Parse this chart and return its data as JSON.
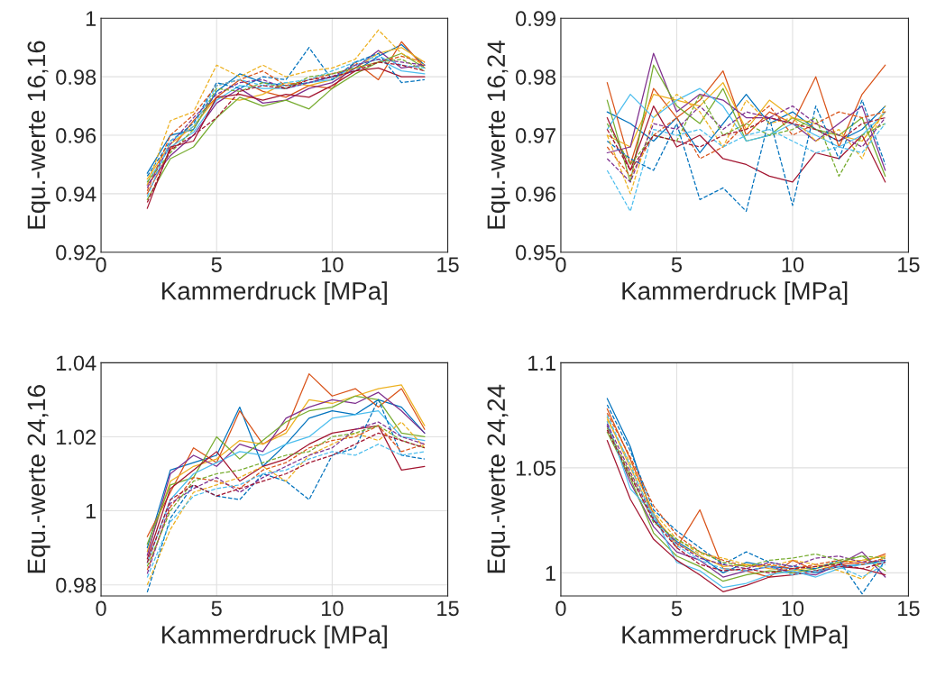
{
  "chart_data": [
    {
      "type": "line",
      "xlabel": "Kammerdruck [MPa]",
      "ylabel": "Equ.-werte 16,16",
      "x": [
        2,
        3,
        4,
        5,
        6,
        7,
        8,
        9,
        10,
        11,
        12,
        13,
        14
      ],
      "xlim": [
        0,
        15
      ],
      "xticks": [
        0,
        5,
        10,
        15
      ],
      "ylim": [
        0.92,
        1
      ],
      "yticks": [
        0.92,
        0.94,
        0.96,
        0.98,
        1
      ],
      "grid": true,
      "series": [
        {
          "color": "#0072bd",
          "line_style": "solid",
          "values": [
            0.947,
            0.96,
            0.962,
            0.975,
            0.981,
            0.978,
            0.977,
            0.978,
            0.98,
            0.982,
            0.987,
            0.991,
            0.984
          ]
        },
        {
          "color": "#d95319",
          "line_style": "solid",
          "values": [
            0.94,
            0.955,
            0.965,
            0.973,
            0.979,
            0.975,
            0.973,
            0.977,
            0.976,
            0.985,
            0.979,
            0.992,
            0.983
          ]
        },
        {
          "color": "#edb120",
          "line_style": "solid",
          "values": [
            0.945,
            0.957,
            0.963,
            0.973,
            0.972,
            0.974,
            0.978,
            0.977,
            0.979,
            0.983,
            0.988,
            0.99,
            0.985
          ]
        },
        {
          "color": "#7e2f8e",
          "line_style": "solid",
          "values": [
            0.943,
            0.953,
            0.96,
            0.971,
            0.976,
            0.971,
            0.972,
            0.976,
            0.978,
            0.983,
            0.989,
            0.983,
            0.984
          ]
        },
        {
          "color": "#77ac30",
          "line_style": "solid",
          "values": [
            0.938,
            0.952,
            0.956,
            0.966,
            0.973,
            0.97,
            0.972,
            0.969,
            0.976,
            0.981,
            0.985,
            0.988,
            0.983
          ]
        },
        {
          "color": "#4dbeee",
          "line_style": "solid",
          "values": [
            0.944,
            0.956,
            0.961,
            0.972,
            0.977,
            0.976,
            0.976,
            0.978,
            0.979,
            0.984,
            0.986,
            0.982,
            0.981
          ]
        },
        {
          "color": "#a2142f",
          "line_style": "solid",
          "values": [
            0.935,
            0.956,
            0.958,
            0.973,
            0.974,
            0.972,
            0.974,
            0.973,
            0.977,
            0.982,
            0.983,
            0.98,
            0.98
          ]
        },
        {
          "color": "#0072bd",
          "line_style": "dashed",
          "values": [
            0.946,
            0.958,
            0.964,
            0.978,
            0.976,
            0.98,
            0.979,
            0.99,
            0.979,
            0.985,
            0.988,
            0.978,
            0.979
          ]
        },
        {
          "color": "#d95319",
          "line_style": "dashed",
          "values": [
            0.941,
            0.96,
            0.967,
            0.977,
            0.979,
            0.982,
            0.977,
            0.979,
            0.981,
            0.983,
            0.985,
            0.987,
            0.985
          ]
        },
        {
          "color": "#edb120",
          "line_style": "dashed",
          "values": [
            0.943,
            0.965,
            0.968,
            0.984,
            0.98,
            0.984,
            0.98,
            0.982,
            0.983,
            0.986,
            0.996,
            0.988,
            0.984
          ]
        },
        {
          "color": "#7e2f8e",
          "line_style": "dashed",
          "values": [
            0.942,
            0.957,
            0.966,
            0.974,
            0.978,
            0.979,
            0.976,
            0.978,
            0.98,
            0.984,
            0.986,
            0.985,
            0.984
          ]
        },
        {
          "color": "#77ac30",
          "line_style": "dashed",
          "values": [
            0.944,
            0.954,
            0.962,
            0.976,
            0.975,
            0.978,
            0.976,
            0.98,
            0.981,
            0.983,
            0.985,
            0.986,
            0.982
          ]
        },
        {
          "color": "#4dbeee",
          "line_style": "dashed",
          "values": [
            0.939,
            0.958,
            0.963,
            0.977,
            0.979,
            0.977,
            0.978,
            0.979,
            0.982,
            0.985,
            0.987,
            0.984,
            0.983
          ]
        },
        {
          "color": "#a2142f",
          "line_style": "dashed",
          "values": [
            0.937,
            0.955,
            0.96,
            0.966,
            0.975,
            0.977,
            0.976,
            0.979,
            0.98,
            0.982,
            0.985,
            0.984,
            0.982
          ]
        }
      ]
    },
    {
      "type": "line",
      "xlabel": "Kammerdruck [MPa]",
      "ylabel": "Equ.-werte 16,24",
      "x": [
        2,
        3,
        4,
        5,
        6,
        7,
        8,
        9,
        10,
        11,
        12,
        13,
        14
      ],
      "xlim": [
        0,
        15
      ],
      "xticks": [
        0,
        5,
        10,
        15
      ],
      "ylim": [
        0.95,
        0.99
      ],
      "yticks": [
        0.95,
        0.96,
        0.97,
        0.98,
        0.99
      ],
      "grid": true,
      "series": [
        {
          "color": "#0072bd",
          "line_style": "solid",
          "values": [
            0.974,
            0.972,
            0.969,
            0.973,
            0.967,
            0.972,
            0.977,
            0.972,
            0.974,
            0.971,
            0.969,
            0.971,
            0.975
          ]
        },
        {
          "color": "#d95319",
          "line_style": "solid",
          "values": [
            0.979,
            0.965,
            0.978,
            0.973,
            0.976,
            0.981,
            0.97,
            0.974,
            0.972,
            0.98,
            0.968,
            0.977,
            0.982
          ]
        },
        {
          "color": "#edb120",
          "line_style": "solid",
          "values": [
            0.97,
            0.968,
            0.977,
            0.976,
            0.975,
            0.979,
            0.971,
            0.976,
            0.973,
            0.972,
            0.97,
            0.969,
            0.974
          ]
        },
        {
          "color": "#7e2f8e",
          "line_style": "solid",
          "values": [
            0.967,
            0.968,
            0.984,
            0.974,
            0.977,
            0.976,
            0.973,
            0.973,
            0.972,
            0.969,
            0.972,
            0.975,
            0.964
          ]
        },
        {
          "color": "#77ac30",
          "line_style": "solid",
          "values": [
            0.976,
            0.962,
            0.982,
            0.975,
            0.972,
            0.978,
            0.969,
            0.97,
            0.973,
            0.971,
            0.97,
            0.973,
            0.963
          ]
        },
        {
          "color": "#4dbeee",
          "line_style": "solid",
          "values": [
            0.971,
            0.977,
            0.973,
            0.976,
            0.978,
            0.975,
            0.969,
            0.97,
            0.972,
            0.97,
            0.968,
            0.97,
            0.974
          ]
        },
        {
          "color": "#a2142f",
          "line_style": "solid",
          "values": [
            0.973,
            0.964,
            0.975,
            0.968,
            0.97,
            0.966,
            0.965,
            0.963,
            0.962,
            0.967,
            0.966,
            0.97,
            0.962
          ]
        },
        {
          "color": "#0072bd",
          "line_style": "dashed",
          "values": [
            0.969,
            0.966,
            0.964,
            0.972,
            0.959,
            0.961,
            0.957,
            0.973,
            0.958,
            0.975,
            0.966,
            0.976,
            0.965
          ]
        },
        {
          "color": "#d95319",
          "line_style": "dashed",
          "values": [
            0.968,
            0.963,
            0.97,
            0.973,
            0.966,
            0.968,
            0.972,
            0.975,
            0.97,
            0.972,
            0.974,
            0.973,
            0.974
          ]
        },
        {
          "color": "#edb120",
          "line_style": "dashed",
          "values": [
            0.97,
            0.96,
            0.973,
            0.977,
            0.974,
            0.968,
            0.976,
            0.972,
            0.973,
            0.969,
            0.971,
            0.966,
            0.975
          ]
        },
        {
          "color": "#7e2f8e",
          "line_style": "dashed",
          "values": [
            0.966,
            0.962,
            0.972,
            0.971,
            0.975,
            0.971,
            0.974,
            0.973,
            0.975,
            0.972,
            0.97,
            0.968,
            0.973
          ]
        },
        {
          "color": "#77ac30",
          "line_style": "dashed",
          "values": [
            0.972,
            0.965,
            0.97,
            0.969,
            0.977,
            0.97,
            0.972,
            0.97,
            0.971,
            0.973,
            0.963,
            0.97,
            0.972
          ]
        },
        {
          "color": "#4dbeee",
          "line_style": "dashed",
          "values": [
            0.964,
            0.957,
            0.971,
            0.97,
            0.971,
            0.968,
            0.97,
            0.971,
            0.969,
            0.967,
            0.968,
            0.967,
            0.972
          ]
        },
        {
          "color": "#a2142f",
          "line_style": "dashed",
          "values": [
            0.971,
            0.964,
            0.97,
            0.969,
            0.968,
            0.97,
            0.971,
            0.973,
            0.972,
            0.971,
            0.969,
            0.972,
            0.973
          ]
        }
      ]
    },
    {
      "type": "line",
      "xlabel": "Kammerdruck [MPa]",
      "ylabel": "Equ.-werte 24,16",
      "x": [
        2,
        3,
        4,
        5,
        6,
        7,
        8,
        9,
        10,
        11,
        12,
        13,
        14
      ],
      "xlim": [
        0,
        15
      ],
      "xticks": [
        0,
        5,
        10,
        15
      ],
      "ylim": [
        0.977,
        1.04
      ],
      "yticks": [
        0.98,
        1,
        1.02,
        1.04
      ],
      "grid": true,
      "series": [
        {
          "color": "#0072bd",
          "line_style": "solid",
          "values": [
            0.99,
            1.011,
            1.013,
            1.015,
            1.028,
            1.012,
            1.018,
            1.025,
            1.027,
            1.026,
            1.03,
            1.028,
            1.021
          ]
        },
        {
          "color": "#d95319",
          "line_style": "solid",
          "values": [
            0.993,
            1.005,
            1.017,
            1.013,
            1.027,
            1.018,
            1.022,
            1.037,
            1.031,
            1.033,
            1.028,
            1.033,
            1.022
          ]
        },
        {
          "color": "#edb120",
          "line_style": "solid",
          "values": [
            0.989,
            1.008,
            1.012,
            1.014,
            1.019,
            1.018,
            1.021,
            1.03,
            1.029,
            1.031,
            1.033,
            1.034,
            1.023
          ]
        },
        {
          "color": "#7e2f8e",
          "line_style": "solid",
          "values": [
            0.988,
            1.01,
            1.015,
            1.012,
            1.018,
            1.016,
            1.025,
            1.028,
            1.03,
            1.029,
            1.032,
            1.027,
            1.021
          ]
        },
        {
          "color": "#77ac30",
          "line_style": "solid",
          "values": [
            0.991,
            1.007,
            1.009,
            1.02,
            1.014,
            1.019,
            1.024,
            1.027,
            1.028,
            1.031,
            1.03,
            1.021,
            1.02
          ]
        },
        {
          "color": "#4dbeee",
          "line_style": "solid",
          "values": [
            0.986,
            1.003,
            1.01,
            1.013,
            1.016,
            1.015,
            1.018,
            1.02,
            1.025,
            1.026,
            1.027,
            1.02,
            1.019
          ]
        },
        {
          "color": "#a2142f",
          "line_style": "solid",
          "values": [
            0.987,
            1.006,
            1.011,
            1.016,
            1.008,
            1.012,
            1.014,
            1.018,
            1.021,
            1.022,
            1.023,
            1.011,
            1.012
          ]
        },
        {
          "color": "#0072bd",
          "line_style": "dashed",
          "values": [
            0.978,
            0.998,
            1.007,
            1.004,
            1.003,
            1.01,
            1.008,
            1.003,
            1.015,
            1.017,
            1.03,
            1.015,
            1.014
          ]
        },
        {
          "color": "#d95319",
          "line_style": "dashed",
          "values": [
            0.984,
            1.001,
            1.009,
            1.008,
            1.006,
            1.011,
            1.013,
            1.017,
            1.019,
            1.02,
            1.023,
            1.016,
            1.018
          ]
        },
        {
          "color": "#edb120",
          "line_style": "dashed",
          "values": [
            0.98,
            0.995,
            1.005,
            1.007,
            1.009,
            1.012,
            1.008,
            1.015,
            1.018,
            1.021,
            1.019,
            1.024,
            1.017
          ]
        },
        {
          "color": "#7e2f8e",
          "line_style": "dashed",
          "values": [
            0.983,
            1.002,
            1.006,
            1.009,
            1.005,
            1.009,
            1.012,
            1.015,
            1.017,
            1.022,
            1.024,
            1.02,
            1.018
          ]
        },
        {
          "color": "#77ac30",
          "line_style": "dashed",
          "values": [
            0.985,
            1.0,
            1.008,
            1.01,
            1.011,
            1.013,
            1.015,
            1.016,
            1.02,
            1.021,
            1.023,
            1.019,
            1.017
          ]
        },
        {
          "color": "#4dbeee",
          "line_style": "dashed",
          "values": [
            0.982,
            0.997,
            1.004,
            1.006,
            1.007,
            1.01,
            1.011,
            1.014,
            1.016,
            1.015,
            1.018,
            1.015,
            1.016
          ]
        },
        {
          "color": "#a2142f",
          "line_style": "dashed",
          "values": [
            0.986,
            1.003,
            1.007,
            1.004,
            1.006,
            1.008,
            1.01,
            1.013,
            1.015,
            1.018,
            1.021,
            1.019,
            1.017
          ]
        }
      ]
    },
    {
      "type": "line",
      "xlabel": "Kammerdruck [MPa]",
      "ylabel": "Equ.-werte 24,24",
      "x": [
        2,
        3,
        4,
        5,
        6,
        7,
        8,
        9,
        10,
        11,
        12,
        13,
        14
      ],
      "xlim": [
        0,
        15
      ],
      "xticks": [
        0,
        5,
        10,
        15
      ],
      "ylim": [
        0.989,
        1.1
      ],
      "yticks": [
        1,
        1.05,
        1.1
      ],
      "grid": true,
      "series": [
        {
          "color": "#0072bd",
          "line_style": "solid",
          "values": [
            1.083,
            1.06,
            1.025,
            1.015,
            1.008,
            1.0,
            1.005,
            1.003,
            1.002,
            1.0,
            1.003,
            1.004,
            1.006
          ]
        },
        {
          "color": "#d95319",
          "line_style": "solid",
          "values": [
            1.078,
            1.054,
            1.028,
            1.012,
            1.03,
            1.002,
            1.001,
            0.998,
            1.006,
            1.001,
            1.004,
            1.005,
            1.009
          ]
        },
        {
          "color": "#edb120",
          "line_style": "solid",
          "values": [
            1.074,
            1.05,
            1.027,
            1.014,
            1.008,
            1.003,
            1.004,
            1.002,
            1.001,
            1.003,
            1.005,
            1.006,
            1.008
          ]
        },
        {
          "color": "#7e2f8e",
          "line_style": "solid",
          "values": [
            1.07,
            1.043,
            1.022,
            1.01,
            1.006,
            0.998,
            1.001,
            1.003,
            1.0,
            0.999,
            1.004,
            1.01,
            0.998
          ]
        },
        {
          "color": "#77ac30",
          "line_style": "solid",
          "values": [
            1.067,
            1.045,
            1.019,
            1.008,
            1.003,
            0.996,
            0.999,
            1.001,
            1.0,
            1.002,
            1.005,
            1.008,
            1.001
          ]
        },
        {
          "color": "#4dbeee",
          "line_style": "solid",
          "values": [
            1.072,
            1.04,
            1.028,
            1.005,
            1.001,
            0.993,
            0.995,
            0.999,
            1.001,
            0.998,
            1.002,
            1.004,
            1.005
          ]
        },
        {
          "color": "#a2142f",
          "line_style": "solid",
          "values": [
            1.063,
            1.035,
            1.016,
            1.006,
            0.999,
            0.991,
            0.994,
            0.998,
            0.999,
            1.001,
            1.003,
            1.002,
            0.999
          ]
        },
        {
          "color": "#0072bd",
          "line_style": "dashed",
          "values": [
            1.08,
            1.058,
            1.03,
            1.02,
            1.012,
            1.004,
            1.01,
            1.005,
            1.003,
            1.002,
            1.006,
            0.99,
            1.006
          ]
        },
        {
          "color": "#d95319",
          "line_style": "dashed",
          "values": [
            1.076,
            1.055,
            1.032,
            1.018,
            1.01,
            1.006,
            1.003,
            1.004,
            1.002,
            1.004,
            1.006,
            1.004,
            1.007
          ]
        },
        {
          "color": "#edb120",
          "line_style": "dashed",
          "values": [
            1.073,
            1.052,
            1.029,
            1.016,
            1.009,
            1.007,
            1.004,
            1.003,
            1.006,
            1.004,
            1.001,
            0.997,
            1.008
          ]
        },
        {
          "color": "#7e2f8e",
          "line_style": "dashed",
          "values": [
            1.071,
            1.048,
            1.026,
            1.014,
            1.007,
            1.004,
            1.002,
            1.005,
            1.003,
            1.007,
            1.008,
            1.005,
            1.006
          ]
        },
        {
          "color": "#77ac30",
          "line_style": "dashed",
          "values": [
            1.069,
            1.047,
            1.024,
            1.016,
            1.01,
            1.005,
            1.003,
            1.006,
            1.007,
            1.009,
            1.006,
            1.008,
            1.007
          ]
        },
        {
          "color": "#4dbeee",
          "line_style": "dashed",
          "values": [
            1.075,
            1.051,
            1.026,
            1.013,
            1.006,
            1.002,
            1.001,
            1.003,
            0.999,
            1.001,
            1.003,
            0.998,
            1.004
          ]
        },
        {
          "color": "#a2142f",
          "line_style": "dashed",
          "values": [
            1.068,
            1.046,
            1.025,
            1.012,
            1.004,
            1.001,
            1.002,
            1.0,
            1.002,
            1.003,
            1.004,
            1.002,
            1.005
          ]
        }
      ]
    }
  ]
}
